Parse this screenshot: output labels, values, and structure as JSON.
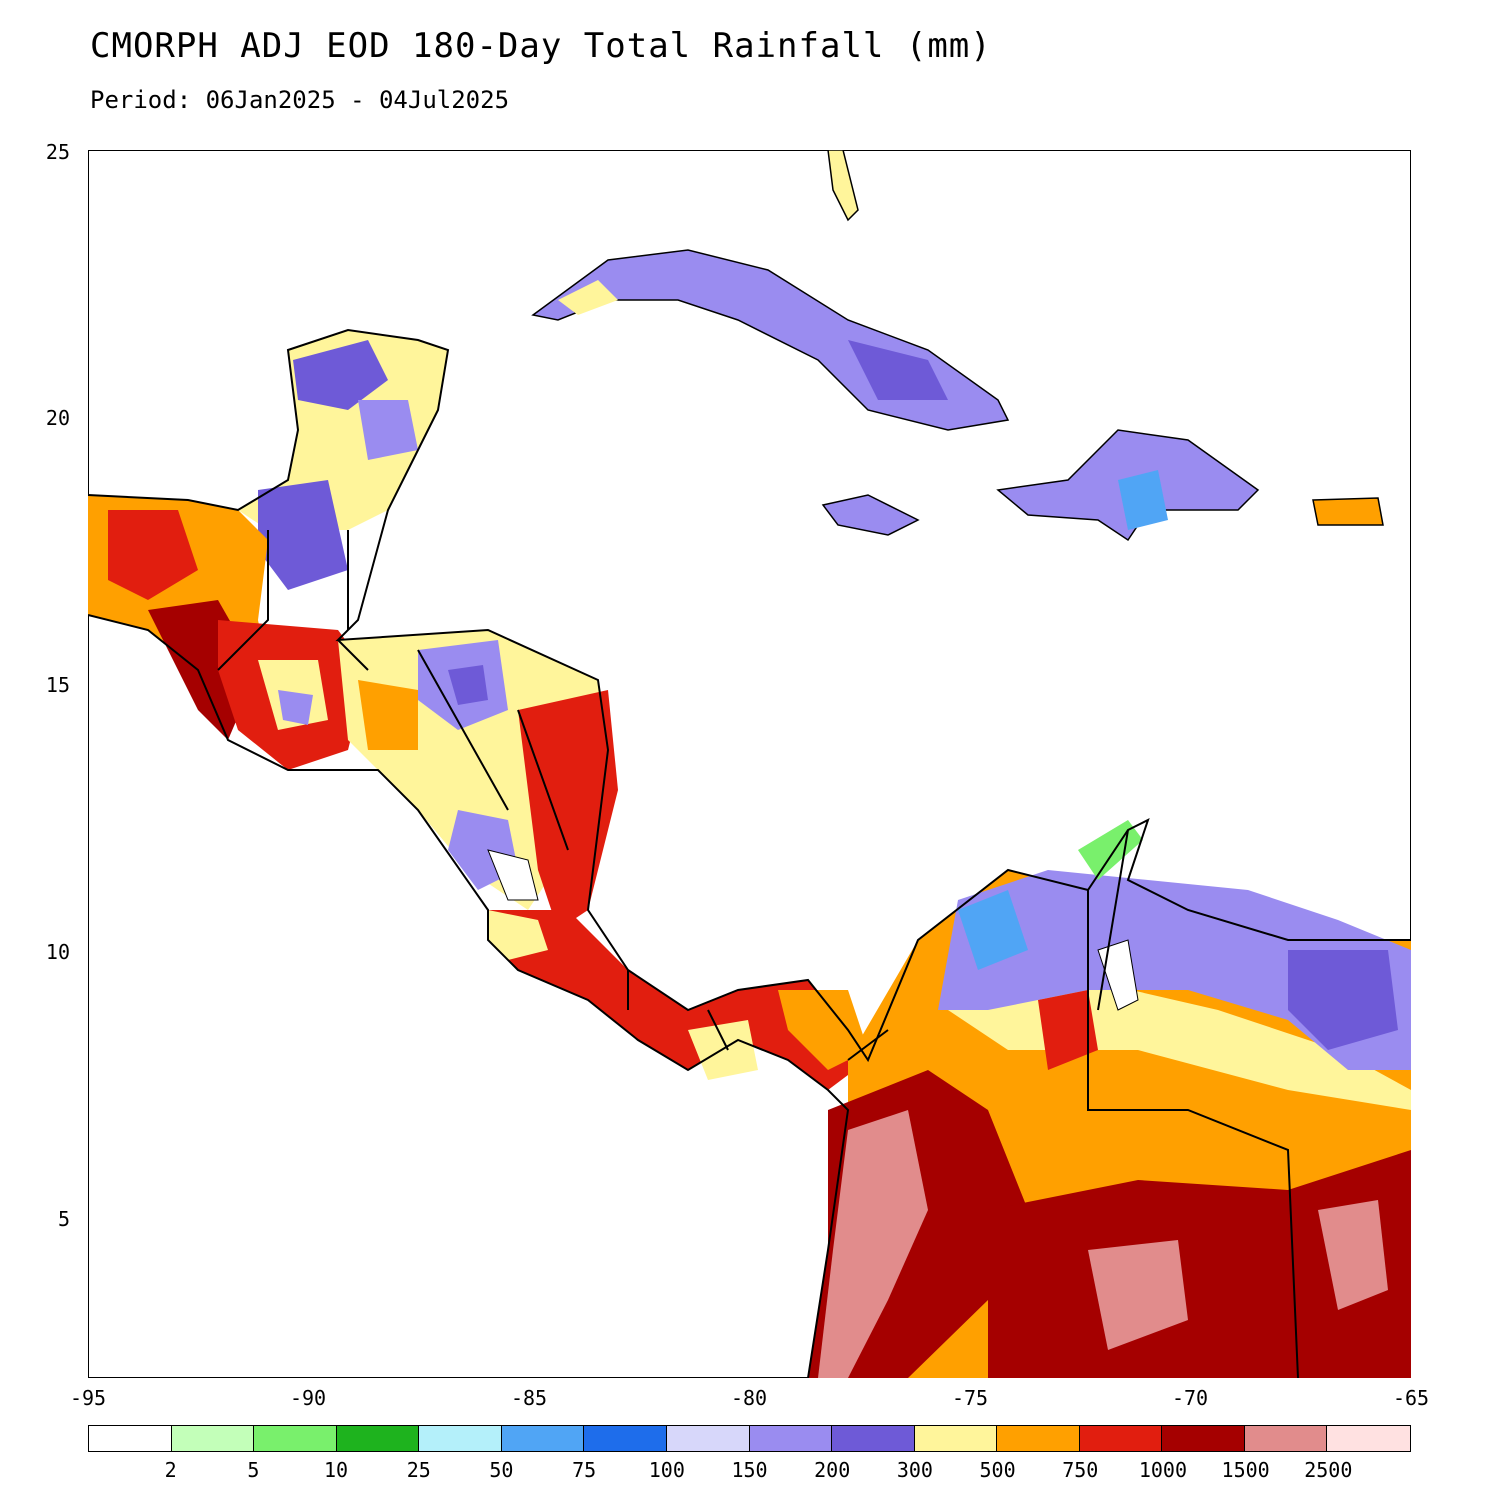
{
  "title": "CMORPH ADJ EOD 180-Day Total Rainfall (mm)",
  "subtitle": "Period: 06Jan2025 - 04Jul2025",
  "axes": {
    "x_ticks": [
      "-95",
      "-90",
      "-85",
      "-80",
      "-75",
      "-70",
      "-65"
    ],
    "y_ticks": [
      "25",
      "20",
      "15",
      "10",
      "5"
    ]
  },
  "legend": {
    "colors": [
      "#ffffff",
      "#c3ffb9",
      "#79f06c",
      "#1eb31e",
      "#b4f0fa",
      "#50a5f5",
      "#1e6deb",
      "#d7d7fa",
      "#9a8cf0",
      "#6e5ad7",
      "#fff59b",
      "#ffa000",
      "#e11e0f",
      "#a50000",
      "#e18c8c",
      "#ffe1e1"
    ],
    "labels": [
      "2",
      "5",
      "10",
      "25",
      "50",
      "75",
      "100",
      "150",
      "200",
      "300",
      "500",
      "750",
      "1000",
      "1500",
      "2500"
    ]
  }
}
